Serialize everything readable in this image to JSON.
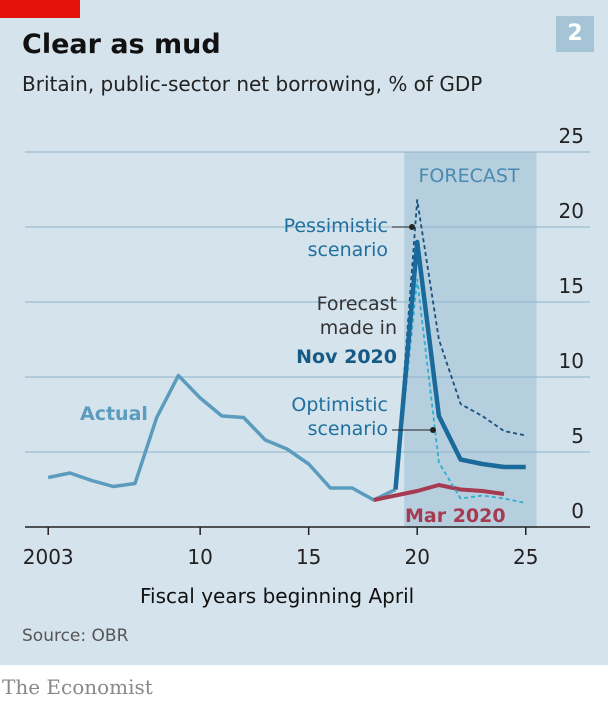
{
  "chart_data": {
    "type": "line",
    "title": "Clear as mud",
    "subtitle": "Britain, public-sector net borrowing, % of GDP",
    "chart_number": "2",
    "xlabel": "Fiscal years beginning April",
    "source": "Source: OBR",
    "publisher": "The Economist",
    "forecast_label": "FORECAST",
    "forecast_region": [
      2019.4,
      2025.5
    ],
    "forecast_color": "#b5cfdf",
    "annotation": "Forecast made in",
    "x": [
      2003,
      2004,
      2005,
      2006,
      2007,
      2008,
      2009,
      2010,
      2011,
      2012,
      2013,
      2014,
      2015,
      2016,
      2017,
      2018,
      2019,
      2020,
      2021,
      2022,
      2023,
      2024,
      2025
    ],
    "series": [
      {
        "name": "Actual",
        "color": "#5b9bbd",
        "width": 3.5,
        "values": [
          3.3,
          3.6,
          3.1,
          2.7,
          2.9,
          7.3,
          10.1,
          8.6,
          7.4,
          7.3,
          5.8,
          5.2,
          4.2,
          2.6,
          2.6,
          1.8,
          2.5,
          null,
          null,
          null,
          null,
          null,
          null
        ]
      },
      {
        "name": "Nov 2020",
        "color": "#1a6a9c",
        "width": 4.5,
        "values": [
          null,
          null,
          null,
          null,
          null,
          null,
          null,
          null,
          null,
          null,
          null,
          null,
          null,
          null,
          null,
          null,
          2.5,
          19.0,
          7.4,
          4.5,
          4.2,
          4.0,
          4.0
        ]
      },
      {
        "name": "Pessimistic scenario",
        "color": "#1b4f7c",
        "width": 1.8,
        "dashed": true,
        "values": [
          null,
          null,
          null,
          null,
          null,
          null,
          null,
          null,
          null,
          null,
          null,
          null,
          null,
          null,
          null,
          null,
          2.5,
          21.8,
          12.5,
          8.2,
          7.4,
          6.4,
          6.1
        ]
      },
      {
        "name": "Optimistic scenario",
        "color": "#2eaed0",
        "width": 1.8,
        "dashed": true,
        "values": [
          null,
          null,
          null,
          null,
          null,
          null,
          null,
          null,
          null,
          null,
          null,
          null,
          null,
          null,
          null,
          null,
          2.5,
          16.5,
          4.3,
          1.9,
          2.1,
          1.9,
          1.6
        ]
      },
      {
        "name": "Mar 2020",
        "color": "#a63a50",
        "width": 4,
        "values": [
          null,
          null,
          null,
          null,
          null,
          null,
          null,
          null,
          null,
          null,
          null,
          null,
          null,
          null,
          null,
          1.8,
          2.1,
          2.4,
          2.8,
          2.5,
          2.4,
          2.2,
          null
        ]
      }
    ],
    "xlim": [
      2001.7,
      2027.5
    ],
    "ylim": [
      0,
      25
    ],
    "xticks": [
      2003,
      {
        "value": 2010,
        "label": "10"
      },
      {
        "value": 2015,
        "label": "15"
      },
      {
        "value": 2020,
        "label": "20"
      },
      {
        "value": 2025,
        "label": "25"
      }
    ],
    "yticks": [
      0,
      5,
      10,
      15,
      20,
      25
    ],
    "grid": true
  }
}
